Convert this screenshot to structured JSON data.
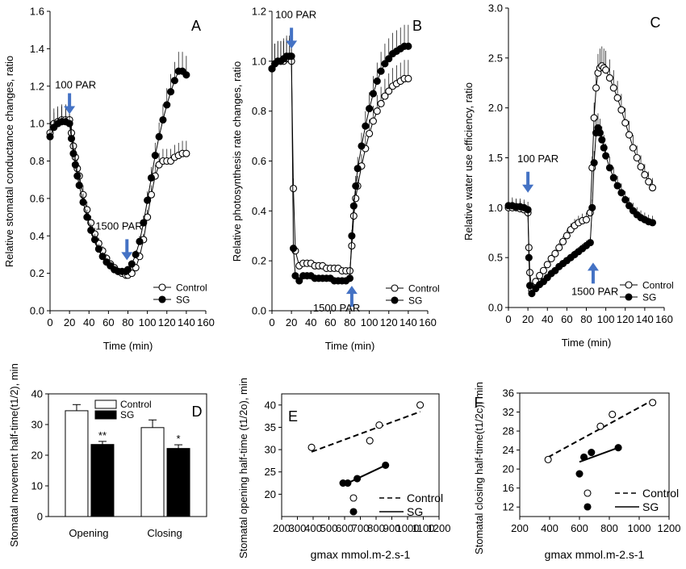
{
  "chart_data": [
    {
      "panel": "A",
      "type": "line",
      "xlabel": "Time (min)",
      "ylabel": "Relative stomatal conductance changes, ratio",
      "xlim": [
        0,
        160
      ],
      "ylim": [
        0,
        1.6
      ],
      "xticks": [
        "0",
        "20",
        "40",
        "60",
        "80",
        "100",
        "120",
        "140",
        "160"
      ],
      "yticks": [
        "0.0",
        "0.2",
        "0.4",
        "0.6",
        "0.8",
        "1.0",
        "1.2",
        "1.4",
        "1.6"
      ],
      "annotations": [
        {
          "text": "100 PAR",
          "x": 20,
          "y": 1.05,
          "arrow": "down"
        },
        {
          "text": "1500 PAR",
          "x": 79,
          "y": 0.27,
          "arrow": "down"
        }
      ],
      "legend": {
        "placement": "bottom-right",
        "entries": [
          "Control",
          "SG"
        ]
      },
      "series": [
        {
          "name": "Control",
          "marker": "open-circle",
          "x": [
            0,
            4,
            8,
            12,
            16,
            20,
            22,
            24,
            26,
            28,
            30,
            34,
            38,
            42,
            46,
            50,
            54,
            58,
            62,
            66,
            70,
            74,
            78,
            80,
            84,
            88,
            92,
            96,
            100,
            104,
            108,
            112,
            116,
            120,
            124,
            128,
            132,
            136,
            140
          ],
          "y": [
            0.95,
            1.0,
            1.01,
            1.02,
            1.02,
            1.02,
            0.95,
            0.88,
            0.82,
            0.76,
            0.72,
            0.62,
            0.54,
            0.47,
            0.41,
            0.36,
            0.32,
            0.28,
            0.25,
            0.23,
            0.21,
            0.2,
            0.19,
            0.19,
            0.2,
            0.23,
            0.29,
            0.38,
            0.5,
            0.62,
            0.72,
            0.78,
            0.8,
            0.8,
            0.8,
            0.82,
            0.83,
            0.84,
            0.84
          ]
        },
        {
          "name": "SG",
          "marker": "filled-circle",
          "x": [
            0,
            4,
            8,
            12,
            16,
            20,
            22,
            24,
            26,
            28,
            30,
            34,
            38,
            42,
            46,
            50,
            54,
            58,
            62,
            66,
            70,
            74,
            78,
            80,
            84,
            88,
            92,
            96,
            100,
            104,
            108,
            112,
            116,
            120,
            124,
            128,
            132,
            136,
            140
          ],
          "y": [
            0.93,
            0.98,
            1.0,
            1.01,
            1.01,
            1.0,
            0.92,
            0.84,
            0.78,
            0.72,
            0.67,
            0.58,
            0.5,
            0.43,
            0.38,
            0.33,
            0.29,
            0.26,
            0.24,
            0.22,
            0.21,
            0.21,
            0.21,
            0.22,
            0.25,
            0.3,
            0.37,
            0.47,
            0.59,
            0.71,
            0.83,
            0.93,
            1.02,
            1.1,
            1.17,
            1.23,
            1.28,
            1.28,
            1.26
          ]
        }
      ]
    },
    {
      "panel": "B",
      "type": "line",
      "xlabel": "Time (min)",
      "ylabel": "Relative photosynthesis rate changes, ratio",
      "xlim": [
        0,
        160
      ],
      "ylim": [
        0,
        1.2
      ],
      "xticks": [
        "0",
        "20",
        "40",
        "60",
        "80",
        "100",
        "120",
        "140",
        "160"
      ],
      "yticks": [
        "0.0",
        "0.2",
        "0.4",
        "0.6",
        "0.8",
        "1.0",
        "1.2"
      ],
      "annotations": [
        {
          "text": "100 PAR",
          "x": 20,
          "y": 1.05,
          "arrow": "down"
        },
        {
          "text": "1500 PAR",
          "x": 82,
          "y": 0.1,
          "arrow": "up"
        }
      ],
      "legend": {
        "placement": "bottom-right",
        "entries": [
          "Control",
          "SG"
        ]
      },
      "series": [
        {
          "name": "Control",
          "marker": "open-circle",
          "x": [
            0,
            3,
            6,
            9,
            12,
            15,
            18,
            20,
            22,
            24,
            28,
            32,
            36,
            40,
            44,
            48,
            52,
            56,
            60,
            64,
            68,
            72,
            76,
            80,
            82,
            84,
            86,
            88,
            92,
            96,
            100,
            104,
            108,
            112,
            116,
            120,
            124,
            128,
            132,
            136,
            140
          ],
          "y": [
            0.97,
            0.99,
            1.0,
            1.0,
            1.0,
            1.01,
            1.01,
            1.0,
            0.49,
            0.24,
            0.18,
            0.19,
            0.19,
            0.19,
            0.18,
            0.18,
            0.18,
            0.17,
            0.17,
            0.17,
            0.17,
            0.16,
            0.16,
            0.16,
            0.26,
            0.38,
            0.45,
            0.5,
            0.58,
            0.65,
            0.71,
            0.76,
            0.8,
            0.83,
            0.86,
            0.88,
            0.9,
            0.91,
            0.92,
            0.93,
            0.93
          ]
        },
        {
          "name": "SG",
          "marker": "filled-circle",
          "x": [
            0,
            3,
            6,
            9,
            12,
            15,
            18,
            20,
            22,
            24,
            28,
            32,
            36,
            40,
            44,
            48,
            52,
            56,
            60,
            64,
            68,
            72,
            76,
            80,
            82,
            84,
            86,
            88,
            92,
            96,
            100,
            104,
            108,
            112,
            116,
            120,
            124,
            128,
            132,
            136,
            140
          ],
          "y": [
            0.97,
            0.99,
            1.0,
            1.0,
            1.01,
            1.02,
            1.02,
            1.02,
            0.25,
            0.14,
            0.12,
            0.14,
            0.14,
            0.14,
            0.13,
            0.13,
            0.13,
            0.13,
            0.13,
            0.12,
            0.12,
            0.12,
            0.12,
            0.13,
            0.3,
            0.42,
            0.5,
            0.57,
            0.66,
            0.74,
            0.81,
            0.87,
            0.92,
            0.96,
            0.99,
            1.01,
            1.03,
            1.04,
            1.05,
            1.06,
            1.06
          ]
        }
      ]
    },
    {
      "panel": "C",
      "type": "line",
      "xlabel": "Time (min)",
      "ylabel": "Relative water use efficiency, ratio",
      "xlim": [
        0,
        160
      ],
      "ylim": [
        0,
        3.0
      ],
      "xticks": [
        "0",
        "20",
        "40",
        "60",
        "80",
        "100",
        "120",
        "140",
        "160"
      ],
      "yticks": [
        "0.0",
        "0.5",
        "1.0",
        "1.5",
        "2.0",
        "2.5",
        "3.0"
      ],
      "annotations": [
        {
          "text": "100 PAR",
          "x": 20,
          "y": 1.15,
          "arrow": "down"
        },
        {
          "text": "1500 PAR",
          "x": 87,
          "y": 0.45,
          "arrow": "up"
        }
      ],
      "legend": {
        "placement": "bottom-right",
        "entries": [
          "Control",
          "SG"
        ]
      },
      "series": [
        {
          "name": "Control",
          "marker": "open-circle",
          "x": [
            0,
            4,
            8,
            12,
            16,
            20,
            21,
            22,
            24,
            28,
            32,
            36,
            40,
            44,
            48,
            52,
            56,
            60,
            64,
            68,
            72,
            76,
            80,
            84,
            86,
            88,
            90,
            92,
            94,
            96,
            98,
            100,
            104,
            108,
            112,
            116,
            120,
            124,
            128,
            132,
            136,
            140,
            144,
            148
          ],
          "y": [
            1.0,
            1.0,
            1.0,
            0.99,
            0.98,
            0.95,
            0.6,
            0.35,
            0.17,
            0.26,
            0.32,
            0.37,
            0.43,
            0.49,
            0.54,
            0.6,
            0.66,
            0.72,
            0.78,
            0.82,
            0.85,
            0.87,
            0.88,
            0.95,
            1.4,
            1.9,
            2.2,
            2.35,
            2.4,
            2.42,
            2.4,
            2.38,
            2.3,
            2.2,
            2.1,
            1.98,
            1.85,
            1.73,
            1.6,
            1.5,
            1.41,
            1.33,
            1.26,
            1.2
          ]
        },
        {
          "name": "SG",
          "marker": "filled-circle",
          "x": [
            0,
            4,
            8,
            12,
            16,
            20,
            21,
            22,
            24,
            28,
            32,
            36,
            40,
            44,
            48,
            52,
            56,
            60,
            64,
            68,
            72,
            76,
            80,
            84,
            86,
            88,
            90,
            92,
            94,
            96,
            98,
            100,
            104,
            108,
            112,
            116,
            120,
            124,
            128,
            132,
            136,
            140,
            144,
            148
          ],
          "y": [
            1.02,
            1.02,
            1.01,
            1.01,
            1.0,
            0.98,
            0.5,
            0.22,
            0.14,
            0.19,
            0.23,
            0.26,
            0.3,
            0.34,
            0.37,
            0.41,
            0.44,
            0.47,
            0.5,
            0.53,
            0.56,
            0.59,
            0.62,
            0.65,
            1.0,
            1.45,
            1.75,
            1.8,
            1.75,
            1.68,
            1.6,
            1.52,
            1.4,
            1.3,
            1.22,
            1.15,
            1.08,
            1.02,
            0.97,
            0.93,
            0.9,
            0.88,
            0.86,
            0.85
          ]
        }
      ]
    },
    {
      "panel": "D",
      "type": "bar",
      "xlabel": "",
      "ylabel": "Stomatal movement half-time(t1/2), min",
      "ylim": [
        0,
        40
      ],
      "yticks": [
        "0",
        "10",
        "20",
        "30",
        "40"
      ],
      "categories": [
        "Opening",
        "Closing"
      ],
      "legend": {
        "placement": "top-right",
        "entries": [
          "Control",
          "SG"
        ]
      },
      "series": [
        {
          "name": "Control",
          "fill": "open",
          "values": [
            34.5,
            29.0
          ],
          "errors": [
            2.0,
            2.5
          ]
        },
        {
          "name": "SG",
          "fill": "filled",
          "values": [
            23.5,
            22.2
          ],
          "errors": [
            1.0,
            1.2
          ]
        }
      ],
      "significance": [
        "**",
        "*"
      ]
    },
    {
      "panel": "E",
      "type": "scatter",
      "xlabel": "gmax mmol.m-2.s-1",
      "ylabel": "Stomatal opening half-time (t1/2o), min",
      "xlim": [
        200,
        1200
      ],
      "ylim": [
        15,
        42.5
      ],
      "xticks": [
        "200",
        "300",
        "400",
        "500",
        "600",
        "700",
        "800",
        "900",
        "1000",
        "1100",
        "1200"
      ],
      "yticks": [
        "20",
        "25",
        "30",
        "35",
        "40"
      ],
      "legend": {
        "placement": "bottom-right",
        "entries": [
          "Control",
          "SG"
        ]
      },
      "series": [
        {
          "name": "Control",
          "marker": "open-circle",
          "line": "dashed",
          "points": [
            [
              390,
              30.5
            ],
            [
              760,
              32.0
            ],
            [
              820,
              35.5
            ],
            [
              1080,
              40.0
            ]
          ],
          "fit": [
            [
              390,
              29.5
            ],
            [
              1080,
              38.5
            ]
          ]
        },
        {
          "name": "SG",
          "marker": "filled-circle",
          "line": "solid",
          "points": [
            [
              590,
              22.5
            ],
            [
              620,
              22.5
            ],
            [
              680,
              23.5
            ],
            [
              860,
              26.5
            ]
          ],
          "fit": [
            [
              590,
              22.0
            ],
            [
              860,
              26.5
            ]
          ]
        }
      ]
    },
    {
      "panel": "F",
      "type": "scatter",
      "xlabel": "gmax mmol.m-2.s-1",
      "ylabel": "Stomatal closing half-time(t1/2c), min",
      "xlim": [
        200,
        1200
      ],
      "ylim": [
        10,
        36
      ],
      "xticks": [
        "200",
        "400",
        "600",
        "800",
        "1000",
        "1200"
      ],
      "yticks": [
        "12",
        "16",
        "20",
        "24",
        "28",
        "32",
        "36"
      ],
      "legend": {
        "placement": "bottom-right",
        "entries": [
          "Control",
          "SG"
        ]
      },
      "series": [
        {
          "name": "Control",
          "marker": "open-circle",
          "line": "dashed",
          "points": [
            [
              390,
              22.0
            ],
            [
              740,
              29.0
            ],
            [
              820,
              31.5
            ],
            [
              1090,
              34.0
            ]
          ],
          "fit": [
            [
              390,
              22.5
            ],
            [
              1090,
              34.5
            ]
          ]
        },
        {
          "name": "SG",
          "marker": "filled-circle",
          "line": "solid",
          "points": [
            [
              600,
              19.0
            ],
            [
              630,
              22.5
            ],
            [
              680,
              23.5
            ],
            [
              860,
              24.5
            ]
          ],
          "fit": [
            [
              600,
              21.5
            ],
            [
              860,
              24.5
            ]
          ]
        }
      ]
    }
  ]
}
